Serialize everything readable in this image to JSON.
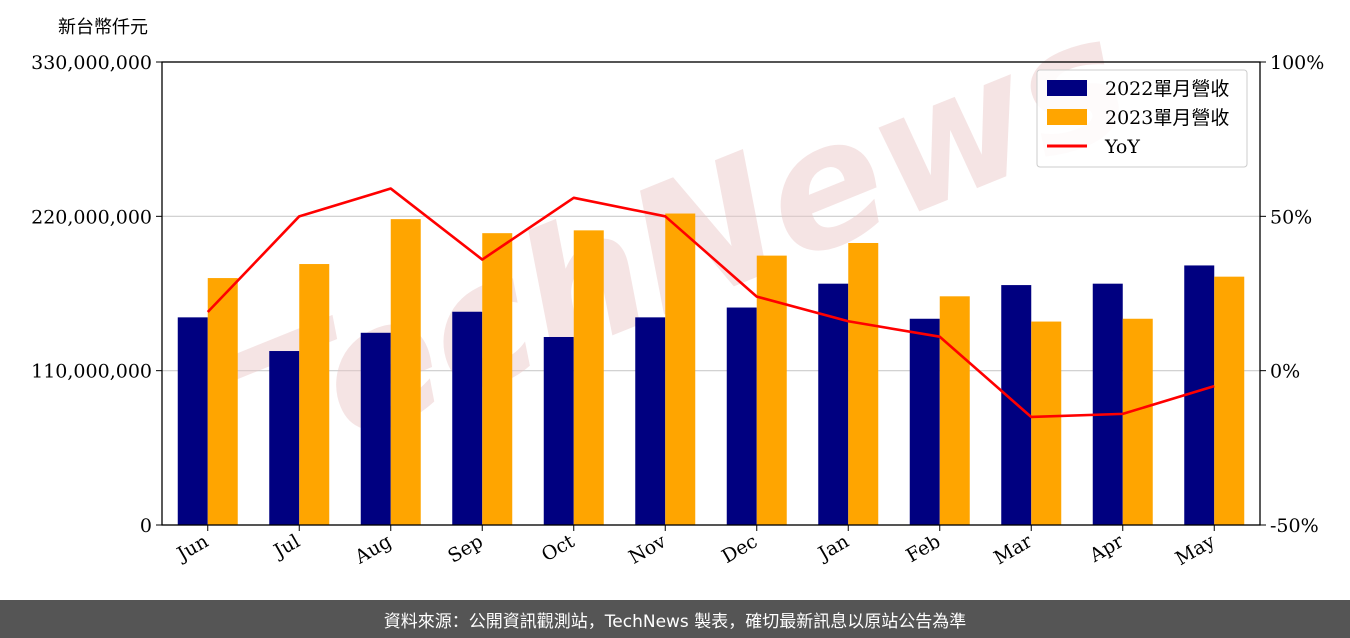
{
  "chart_data": {
    "type": "bar",
    "y_unit_label": "新台幣仟元",
    "categories": [
      "Jun",
      "Jul",
      "Aug",
      "Sep",
      "Oct",
      "Nov",
      "Dec",
      "Jan",
      "Feb",
      "Mar",
      "Apr",
      "May"
    ],
    "series": [
      {
        "name": "2022單月營收",
        "type": "bar",
        "color": "#000080",
        "values": [
          148000000,
          124000000,
          137000000,
          152000000,
          134000000,
          148000000,
          155000000,
          172000000,
          147000000,
          171000000,
          172000000,
          185000000
        ]
      },
      {
        "name": "2023單月營收",
        "type": "bar",
        "color": "#ffa500",
        "values": [
          176000000,
          186000000,
          218000000,
          208000000,
          210000000,
          222000000,
          192000000,
          201000000,
          163000000,
          145000000,
          147000000,
          177000000
        ]
      },
      {
        "name": "YoY",
        "type": "line",
        "axis": "right",
        "color": "#ff0000",
        "values": [
          19,
          50,
          59,
          36,
          56,
          50,
          24,
          16,
          11,
          -15,
          -14,
          -5
        ]
      }
    ],
    "ylim": [
      0,
      330000000
    ],
    "yticks": [
      "0",
      "110,000,000",
      "220,000,000",
      "330,000,000"
    ],
    "ytick_values": [
      0,
      110000000,
      220000000,
      330000000
    ],
    "y2lim": [
      -50,
      100
    ],
    "y2ticks": [
      "-50%",
      "0%",
      "50%",
      "100%"
    ],
    "y2tick_values": [
      -50,
      0,
      50,
      100
    ],
    "grid": "horizontal",
    "legend_position": "top-right"
  },
  "watermark": "TechNews",
  "footer_text": "資料來源：公開資訊觀測站，TechNews 製表，確切最新訊息以原站公告為準"
}
